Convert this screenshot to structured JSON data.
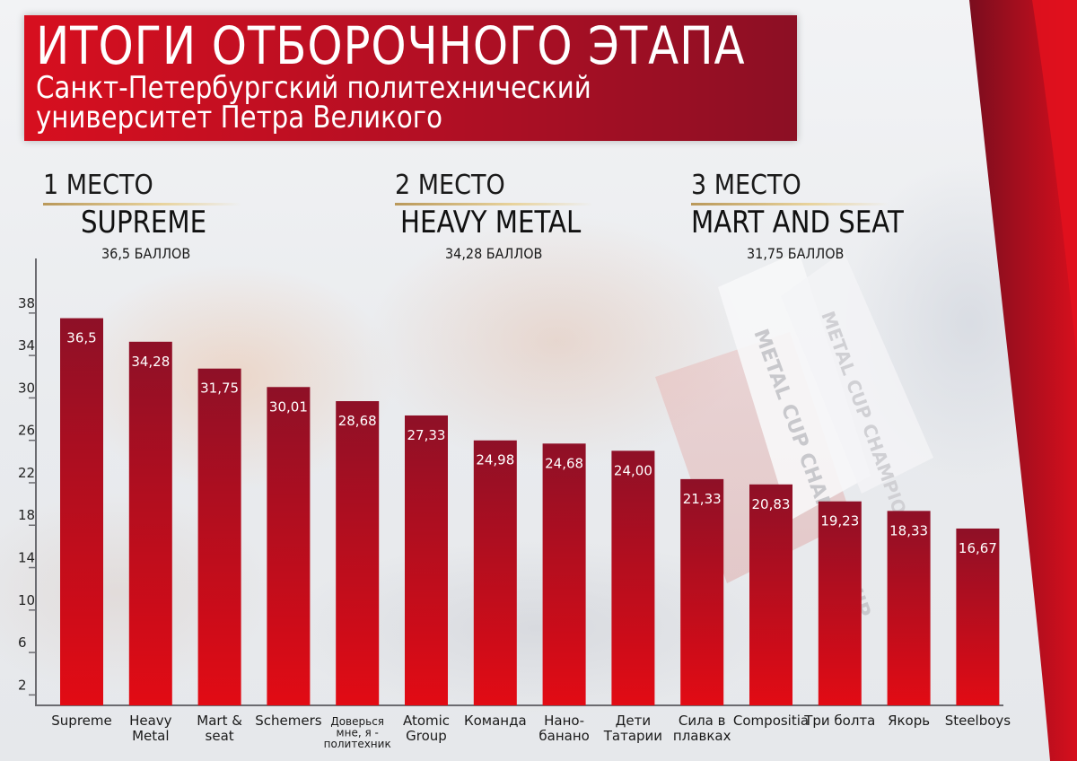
{
  "header": {
    "title": "ИТОГИ ОТБОРОЧНОГО ЭТАПА",
    "subtitle": "Санкт-Петербургский политехнический университет Петра Великого"
  },
  "podium": [
    {
      "place": "1 МЕСТО",
      "team": "SUPREME",
      "score": "36,5 БАЛЛОВ"
    },
    {
      "place": "2 МЕСТО",
      "team": "HEAVY METAL",
      "score": "34,28 БАЛЛОВ"
    },
    {
      "place": "3 МЕСТО",
      "team": "MART AND SEAT",
      "score": "31,75 БАЛЛОВ"
    }
  ],
  "background_text": {
    "flag1": "METAL CUP CHAMPIONSHIP",
    "flag2": "METAL CUP CHAMPIONSHIP"
  },
  "colors": {
    "accent": "#d70f1f",
    "bar_top": "#8e1027",
    "bar_bottom": "#e20b14",
    "gold": "#d9bf83"
  },
  "chart_data": {
    "type": "bar",
    "categories": [
      [
        "Supreme"
      ],
      [
        "Heavy",
        "Metal"
      ],
      [
        "Mart &",
        "seat"
      ],
      [
        "Schemers"
      ],
      [
        "Доверься",
        "мне, я -",
        "политехник"
      ],
      [
        "Atomic",
        "Group"
      ],
      [
        "Команда"
      ],
      [
        "Нано-",
        "банано"
      ],
      [
        "Дети",
        "Татарии"
      ],
      [
        "Сила в",
        "плавках"
      ],
      [
        "Compositia"
      ],
      [
        "Три болта"
      ],
      [
        "Якорь"
      ],
      [
        "Steelboys"
      ]
    ],
    "values": [
      36.5,
      34.28,
      31.75,
      30.01,
      28.68,
      27.33,
      24.98,
      24.68,
      24.0,
      21.33,
      20.83,
      19.23,
      18.33,
      16.67
    ],
    "value_labels": [
      "36,5",
      "34,28",
      "31,75",
      "30,01",
      "28,68",
      "27,33",
      "24,98",
      "24,68",
      "24,00",
      "21,33",
      "20,83",
      "19,23",
      "18,33",
      "16,67"
    ],
    "yticks": [
      2,
      6,
      10,
      14,
      18,
      22,
      26,
      30,
      34,
      38
    ],
    "ylim": [
      0,
      40
    ],
    "grid": false,
    "legend": "none"
  }
}
